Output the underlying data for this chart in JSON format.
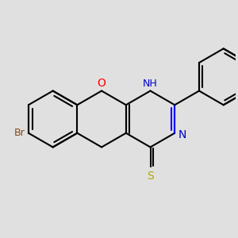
{
  "background_color": "#e0e0e0",
  "bond_color": "#000000",
  "bond_lw": 1.5,
  "figsize": [
    3.0,
    3.0
  ],
  "dpi": 100,
  "BL": 1.0,
  "xlim": [
    -3.8,
    4.5
  ],
  "ylim": [
    -3.5,
    3.5
  ],
  "colors": {
    "C": "#000000",
    "O": "#ff0000",
    "N": "#0000cc",
    "S": "#aaaa00",
    "Br": "#8B4513"
  }
}
